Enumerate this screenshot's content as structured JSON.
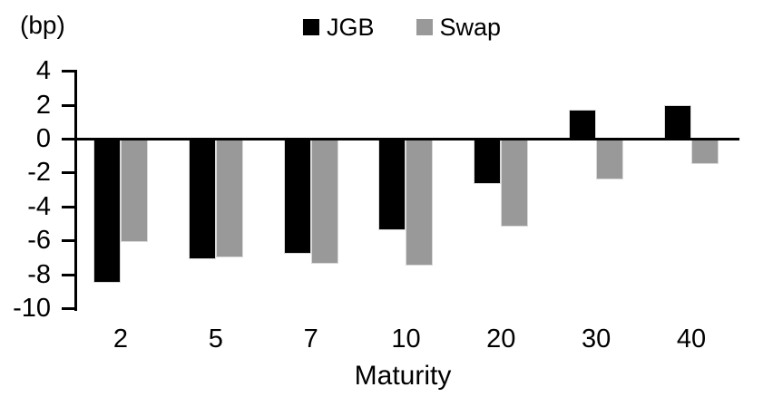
{
  "chart_data": {
    "type": "bar",
    "unit_label": "(bp)",
    "xlabel": "Maturity",
    "categories": [
      "2",
      "5",
      "7",
      "10",
      "20",
      "30",
      "40"
    ],
    "series": [
      {
        "name": "JGB",
        "color": "#000000",
        "values": [
          -8.5,
          -7.1,
          -6.8,
          -5.4,
          -2.7,
          1.7,
          2.0
        ]
      },
      {
        "name": "Swap",
        "color": "#999999",
        "values": [
          -6.1,
          -7.0,
          -7.4,
          -7.5,
          -5.2,
          -2.4,
          -1.5
        ]
      }
    ],
    "ylim": [
      -10,
      4
    ],
    "yticks": [
      4,
      2,
      0,
      -2,
      -4,
      -6,
      -8,
      -10
    ],
    "grid": false,
    "legend_position": "top-center",
    "axis_color": "#000000"
  }
}
